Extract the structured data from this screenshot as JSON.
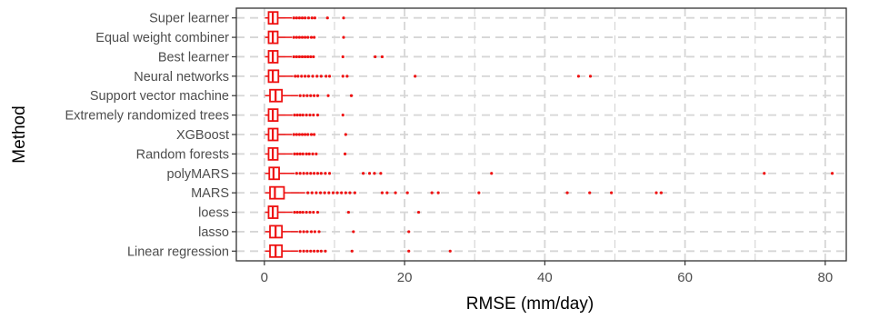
{
  "chart_data": {
    "type": "box",
    "title": "",
    "xlabel": "RMSE (mm/day)",
    "ylabel": "Method",
    "xlim": [
      -4,
      83
    ],
    "x_ticks": [
      0,
      20,
      40,
      60,
      80
    ],
    "grid": true,
    "grid_style": "dashed",
    "colors": {
      "box": "#ee1111",
      "grid": "#d6d6d6",
      "axis": "#333333",
      "label": "#4d4d4d",
      "title": "#000000"
    },
    "categories": [
      "Super learner",
      "Equal weight combiner",
      "Best learner",
      "Neural networks",
      "Support vector machine",
      "Extremely randomized trees",
      "XGBoost",
      "Random forests",
      "polyMARS",
      "MARS",
      "loess",
      "lasso",
      "Linear regression"
    ],
    "boxes": [
      {
        "method": "Super learner",
        "q1": 0.6,
        "median": 1.2,
        "q3": 1.9,
        "whisker_low": 0.1,
        "whisker_high": 3.9,
        "outliers": [
          4.2,
          4.6,
          5.0,
          5.4,
          5.8,
          6.3,
          6.8,
          7.2,
          9.0,
          11.3
        ]
      },
      {
        "method": "Equal weight combiner",
        "q1": 0.6,
        "median": 1.2,
        "q3": 1.9,
        "whisker_low": 0.1,
        "whisker_high": 3.9,
        "outliers": [
          4.2,
          4.6,
          5.0,
          5.4,
          5.8,
          6.2,
          6.7,
          7.1,
          11.3
        ]
      },
      {
        "method": "Best learner",
        "q1": 0.6,
        "median": 1.2,
        "q3": 1.9,
        "whisker_low": 0.1,
        "whisker_high": 3.9,
        "outliers": [
          4.2,
          4.6,
          5.0,
          5.4,
          5.8,
          6.2,
          6.6,
          7.0,
          11.2,
          15.8,
          16.8
        ]
      },
      {
        "method": "Neural networks",
        "q1": 0.6,
        "median": 1.2,
        "q3": 2.0,
        "whisker_low": 0.1,
        "whisker_high": 4.1,
        "outliers": [
          4.4,
          4.8,
          5.3,
          5.8,
          6.3,
          6.9,
          7.5,
          8.1,
          8.8,
          9.3,
          11.2,
          11.8,
          21.5,
          44.8,
          46.5
        ]
      },
      {
        "method": "Support vector machine",
        "q1": 0.8,
        "median": 1.6,
        "q3": 2.5,
        "whisker_low": 0.1,
        "whisker_high": 4.8,
        "outliers": [
          5.1,
          5.6,
          6.1,
          6.6,
          7.1,
          7.6,
          9.1,
          12.4
        ]
      },
      {
        "method": "Extremely randomized trees",
        "q1": 0.6,
        "median": 1.2,
        "q3": 1.9,
        "whisker_low": 0.1,
        "whisker_high": 4.0,
        "outliers": [
          4.3,
          4.7,
          5.1,
          5.5,
          6.0,
          6.5,
          7.0,
          7.6,
          11.2
        ]
      },
      {
        "method": "XGBoost",
        "q1": 0.6,
        "median": 1.2,
        "q3": 1.9,
        "whisker_low": 0.1,
        "whisker_high": 3.9,
        "outliers": [
          4.2,
          4.6,
          5.0,
          5.4,
          5.8,
          6.2,
          6.7,
          7.1,
          11.6
        ]
      },
      {
        "method": "Random forests",
        "q1": 0.6,
        "median": 1.2,
        "q3": 1.9,
        "whisker_low": 0.1,
        "whisker_high": 4.0,
        "outliers": [
          4.3,
          4.7,
          5.1,
          5.5,
          6.0,
          6.4,
          6.9,
          7.4,
          11.5
        ]
      },
      {
        "method": "polyMARS",
        "q1": 0.7,
        "median": 1.3,
        "q3": 2.1,
        "whisker_low": 0.1,
        "whisker_high": 4.3,
        "outliers": [
          4.6,
          5.1,
          5.6,
          6.1,
          6.6,
          7.1,
          7.6,
          8.1,
          8.7,
          9.3,
          14.1,
          15.0,
          15.7,
          16.6,
          32.4,
          71.3,
          81.0
        ]
      },
      {
        "method": "MARS",
        "q1": 0.8,
        "median": 1.5,
        "q3": 2.8,
        "whisker_low": 0.1,
        "whisker_high": 5.8,
        "outliers": [
          6.2,
          6.8,
          7.4,
          8.0,
          8.6,
          9.2,
          9.8,
          10.4,
          11.0,
          11.6,
          12.2,
          12.9,
          16.8,
          17.5,
          18.7,
          20.4,
          23.9,
          24.8,
          30.6,
          43.2,
          46.4,
          49.5,
          55.9,
          56.6
        ]
      },
      {
        "method": "loess",
        "q1": 0.6,
        "median": 1.2,
        "q3": 1.9,
        "whisker_low": 0.1,
        "whisker_high": 4.0,
        "outliers": [
          4.3,
          4.7,
          5.1,
          5.5,
          6.0,
          6.5,
          7.0,
          7.6,
          12.0,
          22.0
        ]
      },
      {
        "method": "lasso",
        "q1": 0.8,
        "median": 1.6,
        "q3": 2.5,
        "whisker_low": 0.1,
        "whisker_high": 4.8,
        "outliers": [
          5.1,
          5.6,
          6.1,
          6.7,
          7.2,
          7.8,
          12.7,
          20.6
        ]
      },
      {
        "method": "Linear regression",
        "q1": 0.8,
        "median": 1.6,
        "q3": 2.5,
        "whisker_low": 0.1,
        "whisker_high": 4.8,
        "outliers": [
          5.1,
          5.6,
          6.1,
          6.6,
          7.1,
          7.6,
          8.1,
          8.7,
          12.5,
          20.6,
          26.5
        ]
      }
    ]
  }
}
